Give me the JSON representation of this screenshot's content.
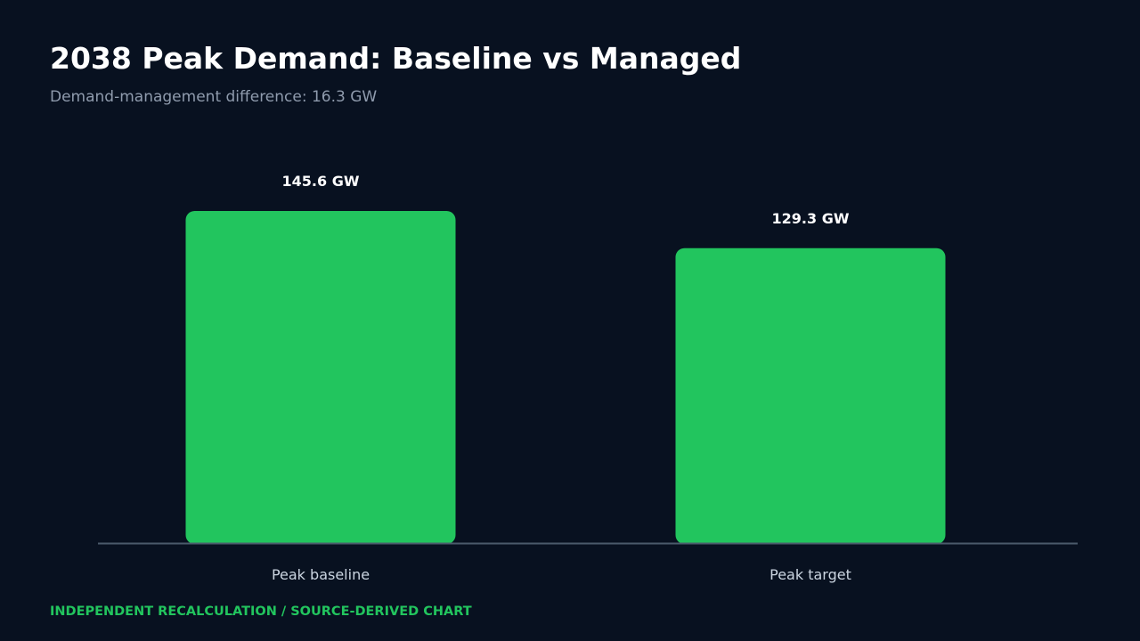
{
  "header": {
    "title": "2038 Peak Demand: Baseline vs Managed",
    "subtitle": "Demand-management difference: 16.3 GW"
  },
  "footer": {
    "note": "INDEPENDENT RECALCULATION / SOURCE-DERIVED CHART"
  },
  "colors": {
    "background": "#081120",
    "bar": "#22c55e",
    "axis": "#4b5a6b",
    "value_label": "#ffffff",
    "category_label": "#cbd5e1"
  },
  "chart_data": {
    "type": "bar",
    "title": "2038 Peak Demand: Baseline vs Managed",
    "subtitle": "Demand-management difference: 16.3 GW",
    "categories": [
      "Peak baseline",
      "Peak target"
    ],
    "values": [
      145.6,
      129.3
    ],
    "value_labels": [
      "145.6 GW",
      "129.3 GW"
    ],
    "unit": "GW",
    "ylim": [
      0,
      145.6
    ],
    "grid": false,
    "legend": "none"
  }
}
